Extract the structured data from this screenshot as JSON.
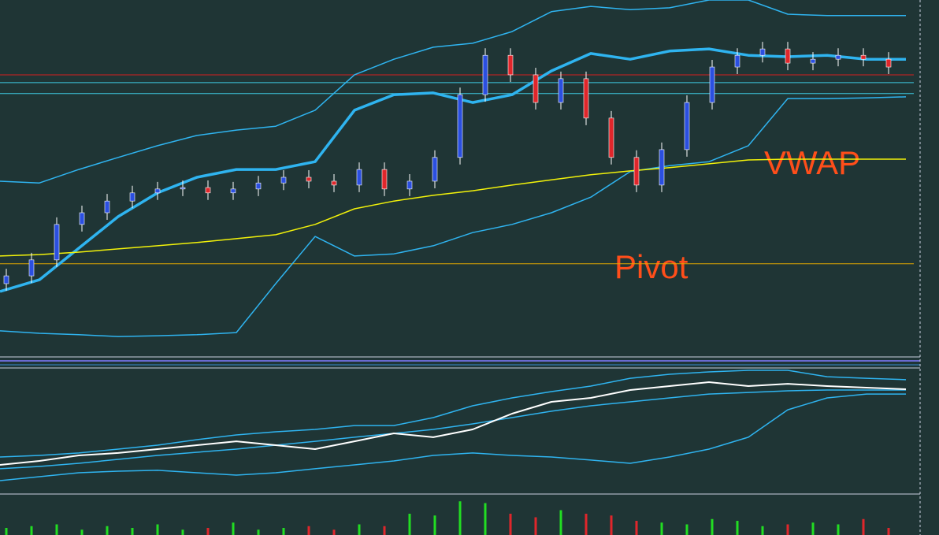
{
  "chart_data": {
    "type": "candlestick",
    "background": "#1f3535",
    "ylim": [
      0,
      100
    ],
    "annotations": [
      "VWAP",
      "Pivot"
    ],
    "annotation_color": "#ff4e1a",
    "up_color": "#2b4fe0",
    "down_color": "#e0262b",
    "wick_color": "#ffffff",
    "open": [
      20,
      22.2,
      26.7,
      36.7,
      40,
      43.3,
      45.6,
      46.7,
      47.1,
      45.6,
      46.7,
      48.4,
      50,
      48.9,
      47.8,
      52.2,
      46.7,
      48.9,
      55.6,
      73.3,
      84.4,
      78.9,
      71.1,
      77.8,
      66.7,
      55.6,
      47.8,
      57.8,
      71.1,
      81.1,
      84.4,
      86.2,
      82.2,
      83.3,
      84.4,
      83.3
    ],
    "high": [
      24.2,
      28.7,
      38.7,
      42,
      45.3,
      47.6,
      48.7,
      49.1,
      49.1,
      48.7,
      50.4,
      52,
      52,
      50.9,
      54.2,
      54.2,
      50.9,
      57.6,
      75.3,
      86.4,
      86.4,
      80.9,
      79.8,
      79.8,
      68.7,
      57.6,
      59.8,
      73.1,
      83.1,
      86.4,
      88.2,
      88.2,
      85.3,
      86.4,
      86.4,
      85.3
    ],
    "low": [
      18,
      20.2,
      24.7,
      34.7,
      38,
      41.3,
      43.6,
      44.7,
      43.6,
      43.6,
      44.7,
      46.4,
      46.9,
      45.8,
      45.8,
      44.7,
      44.7,
      46.9,
      53.6,
      71.3,
      76.9,
      69.1,
      69.1,
      64.7,
      53.6,
      45.8,
      45.8,
      55.8,
      69.1,
      79.1,
      82.4,
      80.2,
      80.2,
      81.3,
      81.3,
      79.1
    ],
    "close": [
      22.2,
      26.7,
      36.7,
      40,
      43.3,
      45.6,
      46.7,
      47.1,
      45.6,
      46.7,
      48.4,
      50,
      48.9,
      47.8,
      52.2,
      46.7,
      48.9,
      55.6,
      73.3,
      84.4,
      78.9,
      71.1,
      77.8,
      66.7,
      55.6,
      47.8,
      57.8,
      71.1,
      81.1,
      84.4,
      86.2,
      82.2,
      83.3,
      84.4,
      83.3,
      81.1
    ],
    "lines": [
      {
        "color": "#2fb4f0",
        "width": 1.5,
        "values": [
          48.9,
          48.4,
          52.2,
          55.6,
          58.9,
          61.8,
          63.3,
          64.4,
          68.9,
          78.9,
          83.3,
          86.7,
          87.8,
          91.1,
          96.7,
          98.2,
          97.3,
          97.8,
          100,
          100,
          96,
          95.6,
          95.6,
          95.6
        ]
      },
      {
        "color": "#2fb4f0",
        "width": 1.5,
        "values": [
          6.7,
          6,
          5.6,
          5.1,
          5.3,
          5.6,
          6.2,
          20,
          33.3,
          27.8,
          28.4,
          30.7,
          34.4,
          36.7,
          40,
          44.4,
          51.6,
          53.3,
          54.4,
          58.9,
          72.2,
          72.2,
          72.4,
          72.7
        ]
      },
      {
        "color": "#2fb4f0",
        "width": 3.5,
        "values": [
          17.8,
          21.1,
          30,
          38.9,
          45.6,
          50,
          52.2,
          52.2,
          54.4,
          68.9,
          73.3,
          73.8,
          71.1,
          73.3,
          80,
          84.9,
          83.3,
          85.6,
          86.2,
          84.4,
          84,
          84.4,
          83.3,
          83.3
        ]
      },
      {
        "color": "#f2f20a",
        "width": 1.5,
        "values": [
          27.8,
          28.2,
          28.9,
          29.8,
          30.7,
          31.6,
          32.7,
          33.8,
          36.7,
          41.1,
          43.3,
          44.9,
          46.2,
          47.8,
          49.3,
          50.7,
          51.8,
          52.7,
          53.8,
          54.9,
          55.1,
          55.1,
          55.1,
          55.1
        ]
      }
    ],
    "levels": [
      {
        "color": "#e0a800",
        "value": 25.6
      },
      {
        "color": "#d42020",
        "value": 78.9
      },
      {
        "color": "#3ec8e0",
        "value": 76.7
      },
      {
        "color": "#3ec8e0",
        "value": 73.6
      }
    ],
    "oscillator": {
      "ylim": [
        0,
        100
      ],
      "lines": [
        {
          "color": "#2fb4f0",
          "width": 1.5,
          "values": [
            29,
            30.3,
            32.3,
            35.5,
            38.7,
            43.2,
            47.1,
            49.7,
            51.6,
            54.8,
            54.8,
            61.3,
            71,
            77.4,
            82.6,
            87.1,
            93.5,
            96.8,
            98.7,
            100,
            100,
            94.8,
            93.5,
            92.3
          ]
        },
        {
          "color": "#2fb4f0",
          "width": 1.5,
          "values": [
            9.7,
            12.9,
            16.1,
            17.4,
            18.1,
            16.1,
            14.2,
            16.1,
            19.4,
            22.6,
            25.8,
            30.3,
            32.3,
            30.3,
            29,
            26.5,
            23.9,
            29,
            35.5,
            45.2,
            67.7,
            77.4,
            80.6,
            80.6
          ]
        },
        {
          "color": "#2fb4f0",
          "width": 1.5,
          "values": [
            19.4,
            21.3,
            23.9,
            27.1,
            30.3,
            32.9,
            35.5,
            38.7,
            41.9,
            45.2,
            48.4,
            51.6,
            56.1,
            61.3,
            66.5,
            71,
            74.2,
            77.4,
            80.6,
            81.9,
            83.2,
            83.9,
            83.9,
            83.9
          ]
        },
        {
          "color": "#ffffff",
          "width": 2,
          "values": [
            22.6,
            25.8,
            30.3,
            32.3,
            35.5,
            38.7,
            41.9,
            38.7,
            35.5,
            41.9,
            48.4,
            45.2,
            51.6,
            64.5,
            74.2,
            77.4,
            83.9,
            87.1,
            90.3,
            87.1,
            89,
            87.1,
            85.8,
            84.5
          ]
        }
      ]
    },
    "volume": {
      "ylim": [
        0,
        100
      ],
      "up_color": "#22dd22",
      "down_color": "#e0262b",
      "values": [
        20,
        25,
        30,
        15,
        25,
        20,
        30,
        15,
        20,
        35,
        15,
        20,
        25,
        15,
        30,
        25,
        60,
        55,
        95,
        90,
        60,
        50,
        70,
        60,
        55,
        40,
        35,
        30,
        45,
        40,
        25,
        30,
        35,
        30,
        45,
        20
      ]
    }
  }
}
